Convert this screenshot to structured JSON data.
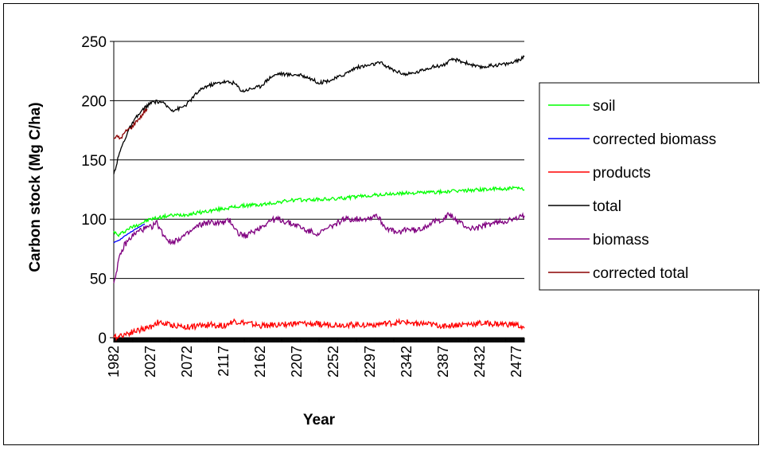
{
  "chart_data": {
    "type": "line",
    "title": "",
    "xlabel": "Year",
    "ylabel": "Carbon stock (Mg C/ha)",
    "xlim": [
      1982,
      2487
    ],
    "ylim": [
      0,
      250
    ],
    "yticks": [
      0,
      50,
      100,
      150,
      200,
      250
    ],
    "xtick_labels": [
      "1982",
      "2027",
      "2072",
      "2117",
      "2162",
      "2207",
      "2252",
      "2297",
      "2342",
      "2387",
      "2432",
      "2477"
    ],
    "grid": "horizontal",
    "legend_position": "right",
    "series": [
      {
        "name": "soil",
        "color": "#00ff00",
        "noise": 1.5,
        "x": [
          1982,
          1987,
          2000,
          2027,
          2050,
          2072,
          2100,
          2117,
          2150,
          2162,
          2200,
          2207,
          2250,
          2252,
          2297,
          2342,
          2387,
          2432,
          2477,
          2487
        ],
        "values": [
          90,
          86,
          92,
          100,
          103,
          104,
          107,
          109,
          112,
          112,
          116,
          116,
          117,
          117,
          120,
          122,
          123,
          125,
          126,
          125
        ]
      },
      {
        "name": "corrected biomass",
        "color": "#0000ff",
        "noise": 0.3,
        "x": [
          1982,
          1990,
          2000,
          2010,
          2020
        ],
        "values": [
          80,
          83,
          88,
          92,
          96
        ]
      },
      {
        "name": "products",
        "color": "#ff0000",
        "noise": 2.5,
        "x": [
          1982,
          1990,
          2005,
          2027,
          2035,
          2050,
          2072,
          2100,
          2117,
          2130,
          2162,
          2207,
          2252,
          2297,
          2342,
          2387,
          2432,
          2477,
          2487
        ],
        "values": [
          0,
          2,
          5,
          9,
          13,
          11,
          9,
          11,
          10,
          14,
          10,
          12,
          11,
          11,
          13,
          10,
          12,
          11,
          8
        ]
      },
      {
        "name": "total",
        "color": "#000000",
        "noise": 1.5,
        "x": [
          1982,
          1990,
          2000,
          2010,
          2020,
          2030,
          2040,
          2050,
          2055,
          2065,
          2072,
          2085,
          2095,
          2105,
          2117,
          2130,
          2140,
          2150,
          2162,
          2175,
          2185,
          2195,
          2207,
          2220,
          2235,
          2252,
          2265,
          2280,
          2297,
          2310,
          2325,
          2342,
          2355,
          2370,
          2387,
          2400,
          2415,
          2432,
          2450,
          2465,
          2477,
          2487
        ],
        "values": [
          138,
          158,
          175,
          186,
          194,
          199,
          199,
          194,
          192,
          194,
          197,
          207,
          212,
          214,
          216,
          215,
          208,
          210,
          212,
          220,
          223,
          222,
          222,
          220,
          215,
          218,
          222,
          228,
          230,
          232,
          226,
          222,
          224,
          228,
          230,
          235,
          232,
          228,
          230,
          231,
          233,
          237
        ]
      },
      {
        "name": "biomass",
        "color": "#800080",
        "noise": 2.5,
        "x": [
          1982,
          1988,
          1995,
          2005,
          2015,
          2027,
          2035,
          2042,
          2052,
          2060,
          2072,
          2085,
          2095,
          2105,
          2117,
          2125,
          2135,
          2145,
          2162,
          2175,
          2185,
          2200,
          2207,
          2220,
          2235,
          2245,
          2252,
          2265,
          2280,
          2297,
          2305,
          2315,
          2330,
          2342,
          2355,
          2370,
          2387,
          2395,
          2405,
          2420,
          2432,
          2445,
          2460,
          2477,
          2487
        ],
        "values": [
          46,
          65,
          78,
          86,
          91,
          93,
          97,
          88,
          80,
          83,
          87,
          94,
          97,
          97,
          97,
          99,
          88,
          86,
          93,
          99,
          100,
          96,
          95,
          90,
          88,
          92,
          95,
          100,
          100,
          101,
          104,
          94,
          88,
          92,
          90,
          96,
          100,
          104,
          98,
          92,
          93,
          96,
          98,
          100,
          103
        ]
      },
      {
        "name": "corrected total",
        "color": "#8b0000",
        "noise": 1.5,
        "x": [
          1982,
          1985,
          1990,
          1998,
          2005,
          2010,
          2015,
          2020,
          2023
        ],
        "values": [
          168,
          170,
          168,
          175,
          178,
          183,
          186,
          191,
          193
        ]
      }
    ]
  }
}
